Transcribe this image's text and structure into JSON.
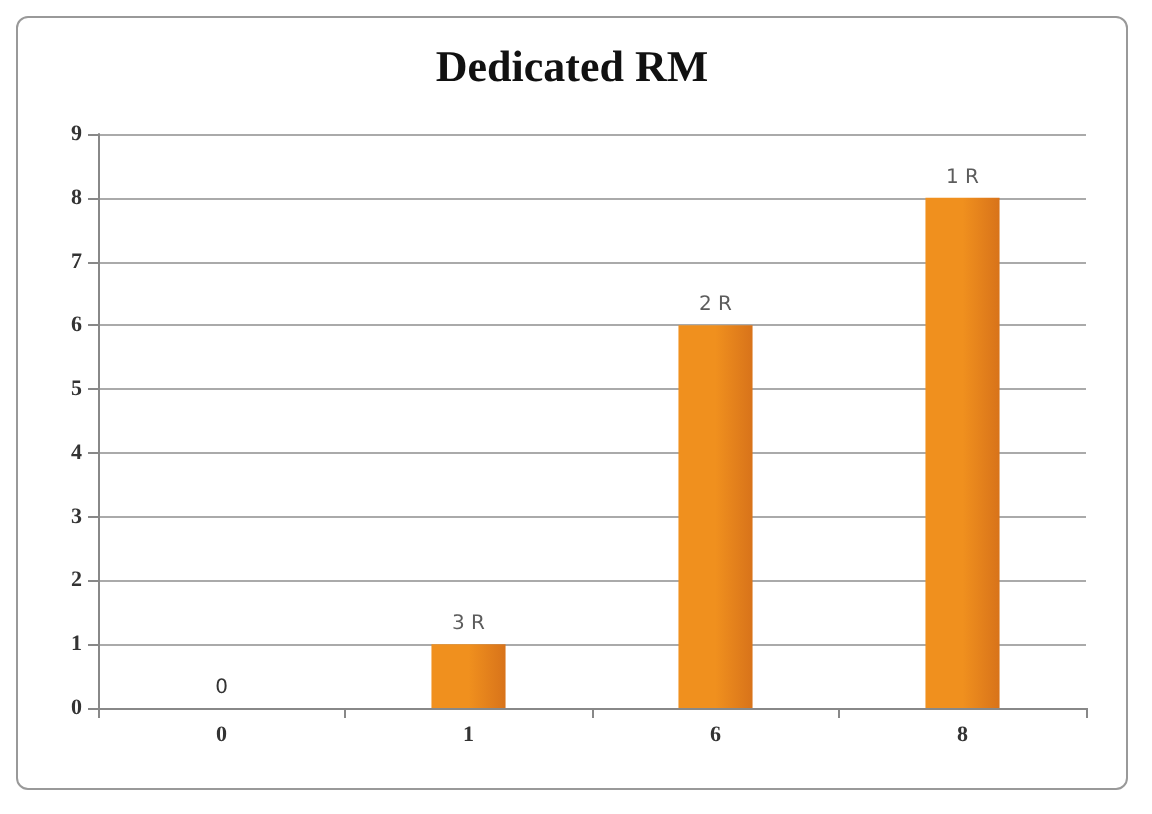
{
  "chart_data": {
    "type": "bar",
    "title": "Dedicated RM",
    "categories": [
      "0",
      "1",
      "6",
      "8"
    ],
    "values": [
      0,
      1,
      6,
      8
    ],
    "value_labels": [
      "0",
      null,
      null,
      null
    ],
    "color": "#f0901e",
    "annotations": [
      {
        "text": "3 R",
        "x": "1",
        "y": 1
      },
      {
        "text": "2 R",
        "x": "6",
        "y": 6
      },
      {
        "text": "1 R",
        "x": "8",
        "y": 8
      }
    ],
    "ylim": [
      0,
      9
    ],
    "yticks": [
      0,
      1,
      2,
      3,
      4,
      5,
      6,
      7,
      8,
      9
    ],
    "grid": "y"
  }
}
